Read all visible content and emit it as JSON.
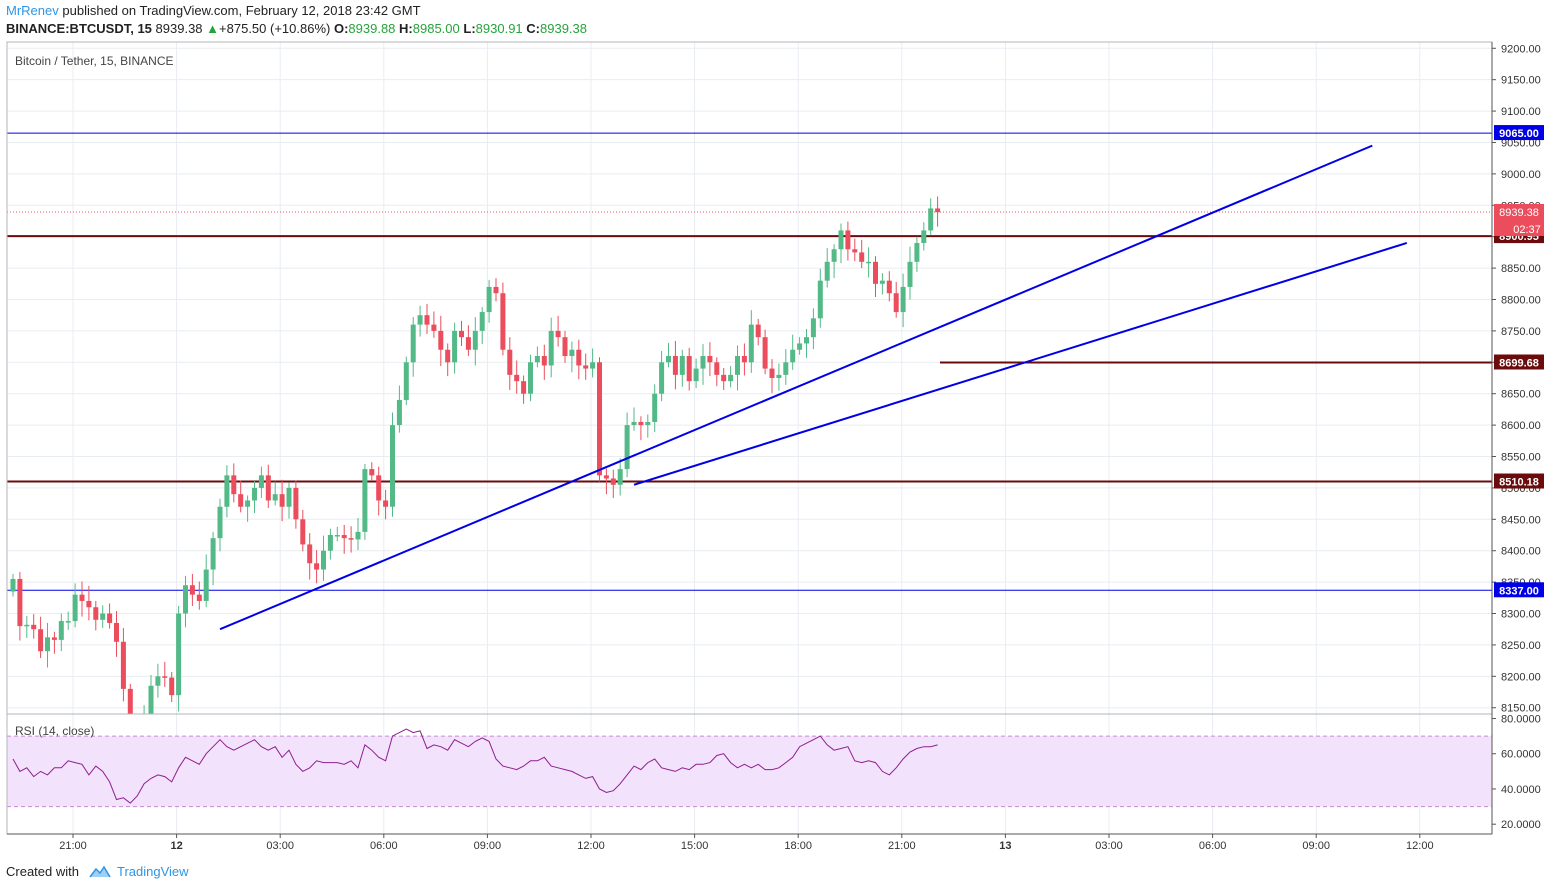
{
  "header": {
    "author": "MrRenev",
    "published_text": "published on TradingView.com, February 12, 2018 23:42 GMT",
    "symbol": "BINANCE:BTCUSDT, 15",
    "last": "8939.38",
    "change": "+875.50 (+10.86%)",
    "o_label": "O:",
    "o_value": "8939.88",
    "h_label": "H:",
    "h_value": "8985.00",
    "l_label": "L:",
    "l_value": "8930.91",
    "c_label": "C:",
    "c_value": "8939.38"
  },
  "footer": {
    "created_with": "Created with",
    "brand": "TradingView"
  },
  "colors": {
    "up": "#53b987",
    "down": "#eb4d5c",
    "trend": "#0000e6",
    "level": "#6b0b0b",
    "rsi": "#8e1f8e",
    "rsi_band": "#f3e2fb",
    "grid": "#e8edf2"
  },
  "chart_data": [
    {
      "type": "candlestick",
      "title": "Bitcoin / Tether, 15, BINANCE",
      "ylim": [
        8140,
        9210
      ],
      "y_ticks": [
        "9200.00",
        "9150.00",
        "9100.00",
        "9050.00",
        "9000.00",
        "8950.00",
        "8900.00",
        "8850.00",
        "8800.00",
        "8750.00",
        "8700.00",
        "8650.00",
        "8600.00",
        "8550.00",
        "8500.00",
        "8450.00",
        "8400.00",
        "8350.00",
        "8300.00",
        "8250.00",
        "8200.00",
        "8150.00"
      ],
      "x_ticks": [
        "21:00",
        "12",
        "03:00",
        "06:00",
        "09:00",
        "12:00",
        "15:00",
        "18:00",
        "21:00",
        "13",
        "03:00",
        "06:00",
        "09:00",
        "12:00"
      ],
      "close_series": [
        8355,
        8280,
        8282,
        8275,
        8240,
        8262,
        8258,
        8288,
        8288,
        8330,
        8320,
        8310,
        8290,
        8300,
        8285,
        8255,
        8180,
        8120,
        8100,
        8140,
        8185,
        8200,
        8198,
        8170,
        8300,
        8345,
        8330,
        8320,
        8370,
        8420,
        8470,
        8520,
        8490,
        8470,
        8480,
        8500,
        8520,
        8480,
        8490,
        8470,
        8500,
        8450,
        8410,
        8380,
        8370,
        8400,
        8425,
        8425,
        8420,
        8418,
        8430,
        8530,
        8520,
        8480,
        8470,
        8600,
        8640,
        8700,
        8760,
        8775,
        8760,
        8750,
        8720,
        8700,
        8750,
        8740,
        8720,
        8750,
        8780,
        8820,
        8810,
        8720,
        8680,
        8670,
        8650,
        8700,
        8710,
        8695,
        8750,
        8740,
        8710,
        8720,
        8695,
        8690,
        8700,
        8520,
        8515,
        8505,
        8530,
        8600,
        8605,
        8600,
        8605,
        8650,
        8700,
        8710,
        8680,
        8710,
        8670,
        8690,
        8710,
        8700,
        8680,
        8670,
        8680,
        8710,
        8700,
        8760,
        8740,
        8690,
        8675,
        8680,
        8700,
        8720,
        8730,
        8740,
        8770,
        8830,
        8860,
        8880,
        8910,
        8880,
        8875,
        8860,
        8860,
        8825,
        8830,
        8810,
        8780,
        8820,
        8860,
        8890,
        8910,
        8945,
        8939
      ],
      "levels": [
        {
          "label": "9065.00",
          "price": 9065.0,
          "color": "#0000e6"
        },
        {
          "label": "8900.95",
          "price": 8900.95,
          "color": "#6b0b0b"
        },
        {
          "label": "8699.68",
          "price": 8699.68,
          "color": "#6b0b0b"
        },
        {
          "label": "8510.18",
          "price": 8510.18,
          "color": "#6b0b0b"
        },
        {
          "label": "8337.00",
          "price": 8337.0,
          "color": "#0000e6"
        }
      ],
      "last_price": {
        "label": "8939.38",
        "countdown": "02:37",
        "price": 8939.38
      },
      "trendlines": [
        {
          "from": {
            "bar": 30,
            "price": 8275
          },
          "to": {
            "bar": 197,
            "price": 9045
          }
        },
        {
          "from": {
            "bar": 90,
            "price": 8505
          },
          "to": {
            "bar": 202,
            "price": 8890
          }
        }
      ]
    },
    {
      "type": "line",
      "title": "RSI (14, close)",
      "ylim": [
        15,
        82
      ],
      "band": [
        30,
        70
      ],
      "y_ticks": [
        "80.0000",
        "60.0000",
        "40.0000",
        "20.0000"
      ],
      "values": [
        57,
        50,
        52,
        47,
        50,
        48,
        52,
        52,
        56,
        55,
        54,
        48,
        53,
        50,
        44,
        34,
        35,
        32,
        36,
        43,
        46,
        48,
        47,
        44,
        52,
        58,
        56,
        54,
        60,
        64,
        68,
        64,
        62,
        64,
        66,
        68,
        64,
        62,
        64,
        58,
        62,
        54,
        50,
        52,
        56,
        55,
        55,
        55,
        54,
        56,
        52,
        65,
        62,
        58,
        56,
        70,
        72,
        74,
        72,
        73,
        63,
        65,
        64,
        62,
        68,
        66,
        64,
        67,
        69,
        67,
        57,
        53,
        52,
        51,
        53,
        56,
        56,
        58,
        53,
        52,
        51,
        50,
        48,
        46,
        47,
        40,
        38,
        39,
        43,
        48,
        53,
        51,
        55,
        57,
        52,
        51,
        50,
        52,
        51,
        54,
        54,
        55,
        59,
        60,
        55,
        52,
        54,
        52,
        54,
        51,
        51,
        52,
        55,
        58,
        64,
        66,
        68,
        70,
        65,
        62,
        63,
        64,
        56,
        55,
        56,
        55,
        50,
        48,
        52,
        57,
        61,
        63,
        64,
        64,
        65
      ]
    }
  ]
}
